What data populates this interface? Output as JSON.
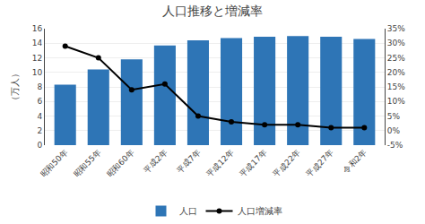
{
  "chart_data": {
    "type": "bar",
    "title": "人口推移と増減率",
    "ylabel": "（万人）",
    "categories": [
      "昭和50年",
      "昭和55年",
      "昭和60年",
      "平成2年",
      "平成7年",
      "平成12年",
      "平成17年",
      "平成22年",
      "平成27年",
      "令和2年"
    ],
    "series": [
      {
        "name": "人口",
        "type": "bar",
        "color": "#2e75b6",
        "values": [
          8.3,
          10.4,
          11.8,
          13.7,
          14.4,
          14.7,
          14.9,
          15.0,
          14.9,
          14.6
        ]
      },
      {
        "name": "人口増減率",
        "type": "line",
        "axis": "y2",
        "color": "#000000",
        "marker": "circle",
        "values": [
          29.0,
          25.0,
          14.0,
          16.0,
          5.0,
          3.0,
          2.0,
          2.0,
          1.0,
          1.0
        ]
      }
    ],
    "ylim": [
      0,
      16
    ],
    "yticks": [
      0,
      2,
      4,
      6,
      8,
      10,
      12,
      14,
      16
    ],
    "y2lim": [
      -5,
      35
    ],
    "y2ticks": [
      {
        "value": -5,
        "label": "-5%"
      },
      {
        "value": 0,
        "label": "0%"
      },
      {
        "value": 5,
        "label": "5%"
      },
      {
        "value": 10,
        "label": "10%"
      },
      {
        "value": 15,
        "label": "15%"
      },
      {
        "value": 20,
        "label": "20%"
      },
      {
        "value": 25,
        "label": "25%"
      },
      {
        "value": 30,
        "label": "30%"
      },
      {
        "value": 35,
        "label": "35%"
      }
    ],
    "grid": true,
    "legend": "bottom"
  }
}
